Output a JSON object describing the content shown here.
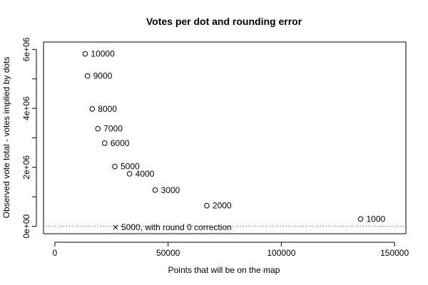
{
  "chart_data": {
    "type": "scatter",
    "title": "Votes per dot and rounding error",
    "xlabel": "Points that will be on the map",
    "ylabel": "Observed vote total - votes implied by dots",
    "xlim": [
      -5000,
      155000
    ],
    "ylim": [
      -250000,
      6250000
    ],
    "xticks": [
      {
        "value": 0,
        "label": "0"
      },
      {
        "value": 50000,
        "label": "50000"
      },
      {
        "value": 100000,
        "label": "100000"
      },
      {
        "value": 150000,
        "label": "150000"
      }
    ],
    "yticks": [
      {
        "value": 0,
        "label": "0e+00"
      },
      {
        "value": 1000000,
        "label": ""
      },
      {
        "value": 2000000,
        "label": "2e+06"
      },
      {
        "value": 3000000,
        "label": ""
      },
      {
        "value": 4000000,
        "label": "4e+06"
      },
      {
        "value": 5000000,
        "label": ""
      },
      {
        "value": 6000000,
        "label": "6e+06"
      }
    ],
    "reference_line": {
      "y": 0,
      "style": "dotted"
    },
    "series": [
      {
        "marker": "circle",
        "points": [
          {
            "x": 13400,
            "y": 5850000,
            "label": "10000"
          },
          {
            "x": 14400,
            "y": 5100000,
            "label": "9000"
          },
          {
            "x": 16500,
            "y": 3980000,
            "label": "8000"
          },
          {
            "x": 19000,
            "y": 3310000,
            "label": "7000"
          },
          {
            "x": 22000,
            "y": 2820000,
            "label": "6000"
          },
          {
            "x": 26500,
            "y": 2030000,
            "label": "5000"
          },
          {
            "x": 33000,
            "y": 1780000,
            "label": "4000"
          },
          {
            "x": 44300,
            "y": 1230000,
            "label": "3000"
          },
          {
            "x": 67100,
            "y": 700000,
            "label": "2000"
          },
          {
            "x": 135000,
            "y": 250000,
            "label": "1000"
          }
        ]
      },
      {
        "marker": "cross",
        "points": [
          {
            "x": 26800,
            "y": -30000,
            "label": "5000, with round 0 correction"
          }
        ]
      }
    ]
  }
}
